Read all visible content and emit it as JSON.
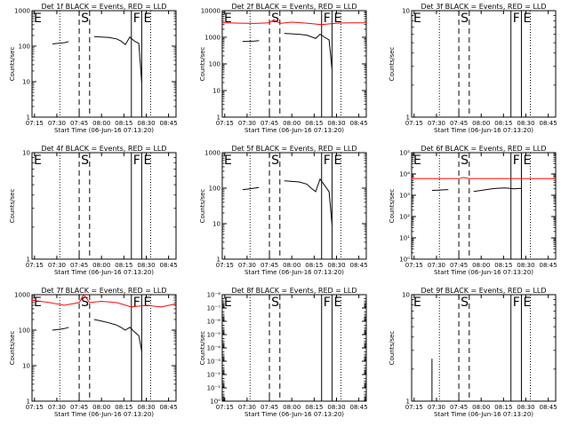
{
  "figure": {
    "x_tick_labels": [
      "07:15",
      "07:30",
      "07:45",
      "08:00",
      "08:15",
      "08:30",
      "08:45"
    ],
    "xlabel": "Start Time (06-Jun-16 07:13:20)",
    "ylabel": "Counts/sec",
    "colors": {
      "events": "#000000",
      "lld": "#ff0000",
      "axes": "#000000"
    }
  },
  "chart_data": [
    {
      "type": "line",
      "title": "Det 1f BLACK = Events, RED = LLD",
      "xlabel": "Start Time (06-Jun-16 07:13:20)",
      "ylabel": "Counts/sec",
      "yscale": "log",
      "xlim": [
        "07:13:20",
        "08:50"
      ],
      "ylim": [
        1,
        1000
      ],
      "y_tick_labels": [
        "1",
        "10",
        "100",
        "1000"
      ],
      "markers": [
        {
          "label": "E",
          "time": "07:13:20",
          "style": "solid"
        },
        {
          "label": "",
          "time": "07:32",
          "style": "dotted"
        },
        {
          "label": "S",
          "time": "07:45",
          "style": "dashed"
        },
        {
          "label": "",
          "time": "07:52",
          "style": "dashed"
        },
        {
          "label": "F",
          "time": "08:20",
          "style": "solid"
        },
        {
          "label": "E",
          "time": "08:27",
          "style": "solid"
        },
        {
          "label": "",
          "time": "08:33",
          "style": "dotted"
        }
      ],
      "series": [
        {
          "color": "black",
          "segments": [
            {
              "x": [
                "07:27",
                "07:31",
                "07:35",
                "07:38"
              ],
              "y": [
                115,
                120,
                125,
                135
              ]
            },
            {
              "x": [
                "07:55",
                "08:00",
                "08:05",
                "08:10",
                "08:13",
                "08:16",
                "08:19",
                "08:22",
                "08:25",
                "08:27"
              ],
              "y": [
                185,
                180,
                175,
                160,
                140,
                110,
                180,
                140,
                120,
                9
              ]
            }
          ]
        }
      ]
    },
    {
      "type": "line",
      "title": "Det 2f BLACK = Events, RED = LLD",
      "xlabel": "Start Time (06-Jun-16 07:13:20)",
      "ylabel": "Counts/sec",
      "yscale": "log",
      "xlim": [
        "07:13:20",
        "08:50"
      ],
      "ylim": [
        1,
        10000
      ],
      "y_tick_labels": [
        "1",
        "10",
        "100",
        "1000",
        "10000"
      ],
      "markers": [
        {
          "label": "E",
          "time": "07:13:20",
          "style": "solid"
        },
        {
          "label": "",
          "time": "07:32",
          "style": "dotted"
        },
        {
          "label": "S",
          "time": "07:45",
          "style": "dashed"
        },
        {
          "label": "",
          "time": "07:52",
          "style": "dashed"
        },
        {
          "label": "F",
          "time": "08:20",
          "style": "solid"
        },
        {
          "label": "E",
          "time": "08:27",
          "style": "solid"
        },
        {
          "label": "",
          "time": "08:33",
          "style": "dotted"
        }
      ],
      "series": [
        {
          "color": "black",
          "segments": [
            {
              "x": [
                "07:27",
                "07:31",
                "07:35",
                "07:38"
              ],
              "y": [
                700,
                700,
                720,
                750
              ]
            },
            {
              "x": [
                "07:55",
                "08:00",
                "08:05",
                "08:10",
                "08:13",
                "08:16",
                "08:19",
                "08:22",
                "08:25",
                "08:27"
              ],
              "y": [
                1400,
                1350,
                1300,
                1200,
                1050,
                900,
                1300,
                1000,
                800,
                60
              ]
            }
          ]
        },
        {
          "color": "red",
          "segments": [
            {
              "x": [
                "07:13:20",
                "07:25",
                "07:35",
                "07:45",
                "07:48",
                "07:52",
                "08:00",
                "08:10",
                "08:20",
                "08:30",
                "08:40",
                "08:50"
              ],
              "y": [
                3500,
                3400,
                3300,
                3500,
                4600,
                3300,
                3700,
                3400,
                3000,
                3400,
                3500,
                3500
              ]
            }
          ]
        }
      ]
    },
    {
      "type": "line",
      "title": "Det 3f BLACK = Events, RED = LLD",
      "xlabel": "Start Time (06-Jun-16 07:13:20)",
      "ylabel": "Counts/sec",
      "yscale": "log",
      "xlim": [
        "07:13:20",
        "08:50"
      ],
      "ylim": [
        1,
        10
      ],
      "y_tick_labels": [
        "1",
        "10"
      ],
      "markers": [
        {
          "label": "E",
          "time": "07:13:20",
          "style": "solid"
        },
        {
          "label": "",
          "time": "07:32",
          "style": "dotted"
        },
        {
          "label": "S",
          "time": "07:45",
          "style": "dashed"
        },
        {
          "label": "",
          "time": "07:52",
          "style": "dashed"
        },
        {
          "label": "F",
          "time": "08:20",
          "style": "solid"
        },
        {
          "label": "E",
          "time": "08:27",
          "style": "solid"
        },
        {
          "label": "",
          "time": "08:33",
          "style": "dotted"
        }
      ],
      "series": []
    },
    {
      "type": "line",
      "title": "Det 4f BLACK = Events, RED = LLD",
      "xlabel": "Start Time (06-Jun-16 07:13:20)",
      "ylabel": "Counts/sec",
      "yscale": "log",
      "xlim": [
        "07:13:20",
        "08:50"
      ],
      "ylim": [
        1,
        10
      ],
      "y_tick_labels": [
        "1",
        "10"
      ],
      "markers": [
        {
          "label": "E",
          "time": "07:13:20",
          "style": "solid"
        },
        {
          "label": "",
          "time": "07:32",
          "style": "dotted"
        },
        {
          "label": "S",
          "time": "07:45",
          "style": "dashed"
        },
        {
          "label": "",
          "time": "07:52",
          "style": "dashed"
        },
        {
          "label": "F",
          "time": "08:20",
          "style": "solid"
        },
        {
          "label": "E",
          "time": "08:27",
          "style": "solid"
        },
        {
          "label": "",
          "time": "08:33",
          "style": "dotted"
        }
      ],
      "series": []
    },
    {
      "type": "line",
      "title": "Det 5f BLACK = Events, RED = LLD",
      "xlabel": "Start Time (06-Jun-16 07:13:20)",
      "ylabel": "Counts/sec",
      "yscale": "log",
      "xlim": [
        "07:13:20",
        "08:50"
      ],
      "ylim": [
        1,
        1000
      ],
      "y_tick_labels": [
        "1",
        "10",
        "100",
        "1000"
      ],
      "markers": [
        {
          "label": "E",
          "time": "07:13:20",
          "style": "solid"
        },
        {
          "label": "",
          "time": "07:32",
          "style": "dotted"
        },
        {
          "label": "S",
          "time": "07:45",
          "style": "dashed"
        },
        {
          "label": "",
          "time": "07:52",
          "style": "dashed"
        },
        {
          "label": "F",
          "time": "08:20",
          "style": "solid"
        },
        {
          "label": "E",
          "time": "08:27",
          "style": "solid"
        },
        {
          "label": "",
          "time": "08:33",
          "style": "dotted"
        }
      ],
      "series": [
        {
          "color": "black",
          "segments": [
            {
              "x": [
                "07:27",
                "07:31",
                "07:35",
                "07:38"
              ],
              "y": [
                90,
                95,
                100,
                105
              ]
            },
            {
              "x": [
                "07:55",
                "08:00",
                "08:05",
                "08:10",
                "08:13",
                "08:16",
                "08:19",
                "08:22",
                "08:25",
                "08:27"
              ],
              "y": [
                160,
                155,
                150,
                130,
                100,
                80,
                180,
                120,
                80,
                9
              ]
            }
          ]
        }
      ]
    },
    {
      "type": "line",
      "title": "Det 6f BLACK = Events, RED = LLD",
      "xlabel": "Start Time (06-Jun-16 07:13:20)",
      "ylabel": "Counts/sec",
      "yscale": "log",
      "xlim": [
        "07:13:20",
        "08:50"
      ],
      "ylim": [
        1,
        100000
      ],
      "y_tick_labels": [
        "10⁰",
        "10¹",
        "10²",
        "10³",
        "10⁴",
        "10⁵"
      ],
      "markers": [
        {
          "label": "E",
          "time": "07:13:20",
          "style": "solid"
        },
        {
          "label": "",
          "time": "07:32",
          "style": "dotted"
        },
        {
          "label": "S",
          "time": "07:45",
          "style": "dashed"
        },
        {
          "label": "",
          "time": "07:52",
          "style": "dashed"
        },
        {
          "label": "F",
          "time": "08:20",
          "style": "solid"
        },
        {
          "label": "E",
          "time": "08:27",
          "style": "solid"
        },
        {
          "label": "",
          "time": "08:33",
          "style": "dotted"
        }
      ],
      "series": [
        {
          "color": "black",
          "segments": [
            {
              "x": [
                "07:27",
                "07:31",
                "07:35",
                "07:38"
              ],
              "y": [
                1700,
                1750,
                1800,
                1850
              ]
            },
            {
              "x": [
                "07:55",
                "08:00",
                "08:05",
                "08:10",
                "08:16",
                "08:22",
                "08:27"
              ],
              "y": [
                1500,
                1700,
                1900,
                2100,
                2200,
                2000,
                2100
              ]
            }
          ]
        },
        {
          "color": "red",
          "segments": [
            {
              "x": [
                "07:13:20",
                "07:30",
                "07:45",
                "07:48",
                "07:52",
                "08:10",
                "08:30",
                "08:50"
              ],
              "y": [
                6000,
                6000,
                6000,
                6800,
                6000,
                6000,
                6000,
                6000
              ]
            }
          ]
        }
      ]
    },
    {
      "type": "line",
      "title": "Det 7f BLACK = Events, RED = LLD",
      "xlabel": "Start Time (06-Jun-16 07:13:20)",
      "ylabel": "Counts/sec",
      "yscale": "log",
      "xlim": [
        "07:13:20",
        "08:50"
      ],
      "ylim": [
        1,
        1000
      ],
      "y_tick_labels": [
        "1",
        "10",
        "100",
        "1000"
      ],
      "markers": [
        {
          "label": "E",
          "time": "07:13:20",
          "style": "solid"
        },
        {
          "label": "",
          "time": "07:32",
          "style": "dotted"
        },
        {
          "label": "S",
          "time": "07:45",
          "style": "dashed"
        },
        {
          "label": "",
          "time": "07:52",
          "style": "dashed"
        },
        {
          "label": "F",
          "time": "08:20",
          "style": "solid"
        },
        {
          "label": "E",
          "time": "08:27",
          "style": "solid"
        },
        {
          "label": "",
          "time": "08:33",
          "style": "dotted"
        }
      ],
      "series": [
        {
          "color": "black",
          "segments": [
            {
              "x": [
                "07:27",
                "07:31",
                "07:35",
                "07:38"
              ],
              "y": [
                100,
                105,
                110,
                120
              ]
            },
            {
              "x": [
                "07:55",
                "08:00",
                "08:05",
                "08:10",
                "08:13",
                "08:16",
                "08:19",
                "08:22",
                "08:25",
                "08:27"
              ],
              "y": [
                200,
                180,
                160,
                140,
                120,
                100,
                120,
                90,
                70,
                25
              ]
            }
          ]
        },
        {
          "color": "red",
          "segments": [
            {
              "x": [
                "07:13:20",
                "07:25",
                "07:35",
                "07:45",
                "07:48",
                "07:52",
                "08:00",
                "08:10",
                "08:20",
                "08:30",
                "08:40",
                "08:50"
              ],
              "y": [
                700,
                600,
                500,
                600,
                1000,
                600,
                650,
                600,
                450,
                500,
                450,
                550
              ]
            }
          ]
        }
      ]
    },
    {
      "type": "line",
      "title": "Det 8f BLACK = Events, RED = LLD",
      "xlabel": "Start Time (06-Jun-16 07:13:20)",
      "ylabel": "Counts/sec",
      "yscale": "log",
      "xlim": [
        "07:13:20",
        "08:50"
      ],
      "ylim": [
        1,
        1e-08
      ],
      "y_tick_labels": [
        "10⁰",
        "10⁻¹",
        "10⁻²",
        "10⁻³",
        "10⁻⁴",
        "10⁻⁵",
        "10⁻⁶",
        "10⁻⁷",
        "10⁻⁸"
      ],
      "markers": [
        {
          "label": "E",
          "time": "07:13:20",
          "style": "solid"
        },
        {
          "label": "",
          "time": "07:32",
          "style": "dotted"
        },
        {
          "label": "S",
          "time": "07:45",
          "style": "dashed"
        },
        {
          "label": "",
          "time": "07:52",
          "style": "dashed"
        },
        {
          "label": "F",
          "time": "08:20",
          "style": "solid"
        },
        {
          "label": "E",
          "time": "08:27",
          "style": "solid"
        },
        {
          "label": "",
          "time": "08:33",
          "style": "dotted"
        }
      ],
      "series": []
    },
    {
      "type": "line",
      "title": "Det 9f BLACK = Events, RED = LLD",
      "xlabel": "Start Time (06-Jun-16 07:13:20)",
      "ylabel": "Counts/sec",
      "yscale": "log",
      "xlim": [
        "07:13:20",
        "08:50"
      ],
      "ylim": [
        1,
        10
      ],
      "y_tick_labels": [
        "1",
        "10"
      ],
      "markers": [
        {
          "label": "E",
          "time": "07:13:20",
          "style": "solid"
        },
        {
          "label": "",
          "time": "07:32",
          "style": "dotted"
        },
        {
          "label": "S",
          "time": "07:45",
          "style": "dashed"
        },
        {
          "label": "",
          "time": "07:52",
          "style": "dashed"
        },
        {
          "label": "F",
          "time": "08:20",
          "style": "solid"
        },
        {
          "label": "E",
          "time": "08:27",
          "style": "solid"
        },
        {
          "label": "",
          "time": "08:33",
          "style": "dotted"
        }
      ],
      "series": [
        {
          "color": "black",
          "segments": [
            {
              "x": [
                "07:27",
                "07:27"
              ],
              "y": [
                1,
                2.5
              ]
            }
          ]
        }
      ]
    }
  ]
}
